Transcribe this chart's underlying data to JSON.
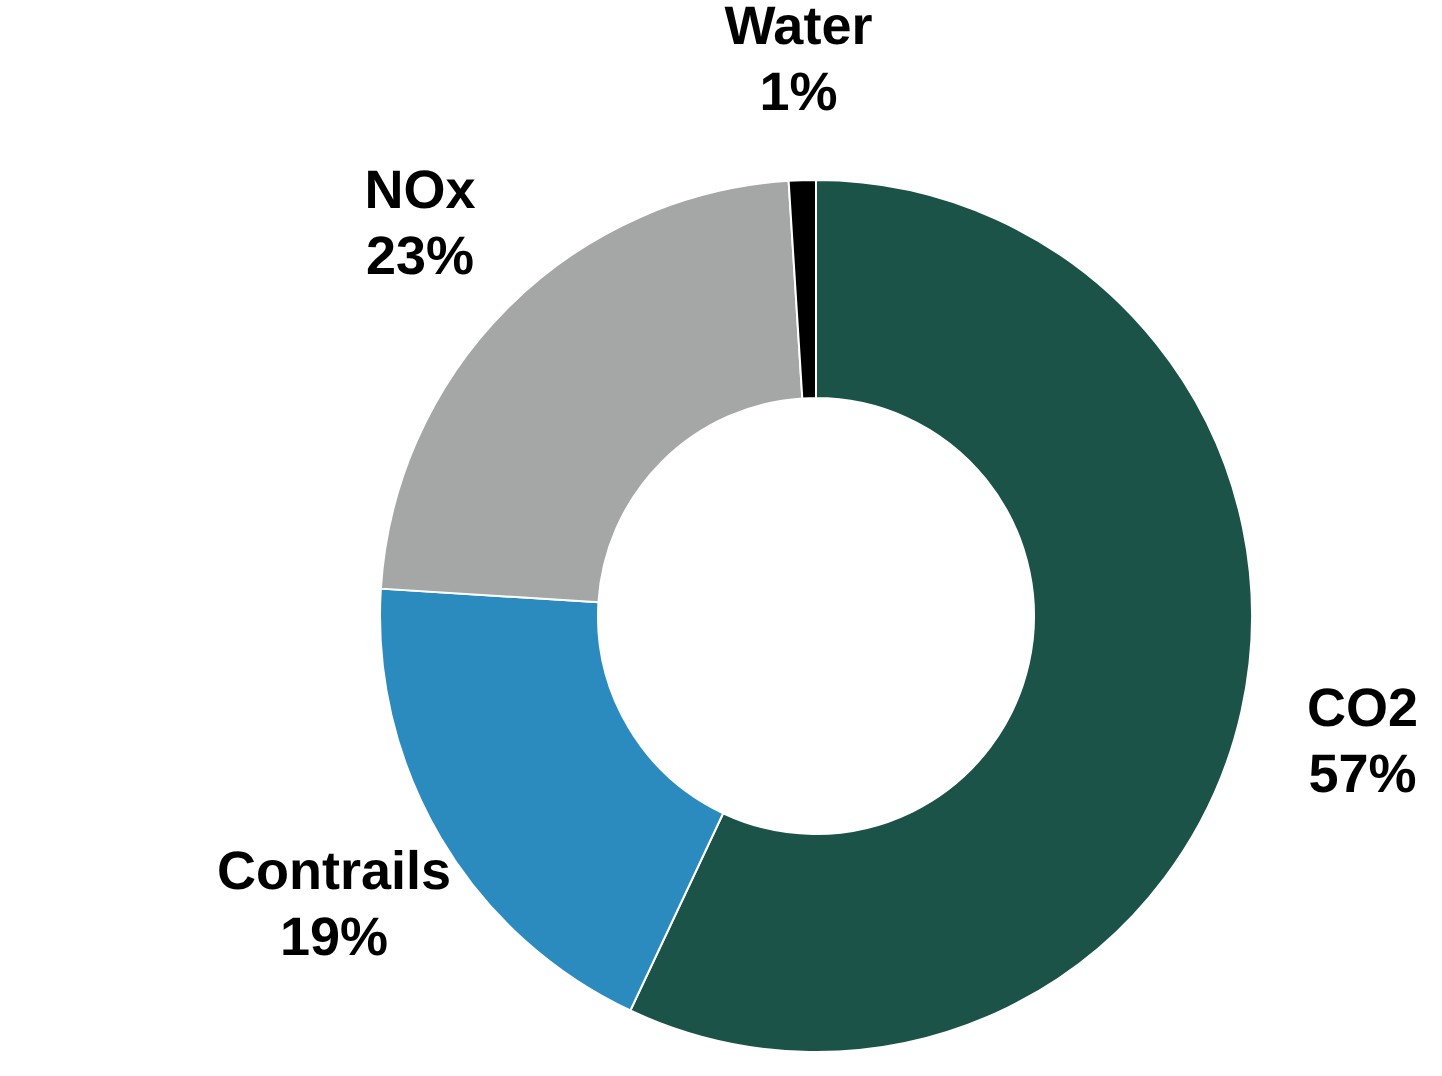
{
  "chart_data": {
    "type": "donut",
    "categories": [
      "CO2",
      "Contrails",
      "NOx",
      "Water"
    ],
    "values": [
      57,
      19,
      23,
      1
    ],
    "colors": [
      "#1b5349",
      "#2b8bbf",
      "#a5a7a6",
      "#000000"
    ],
    "value_labels": [
      "57%",
      "19%",
      "23%",
      "1%"
    ]
  }
}
